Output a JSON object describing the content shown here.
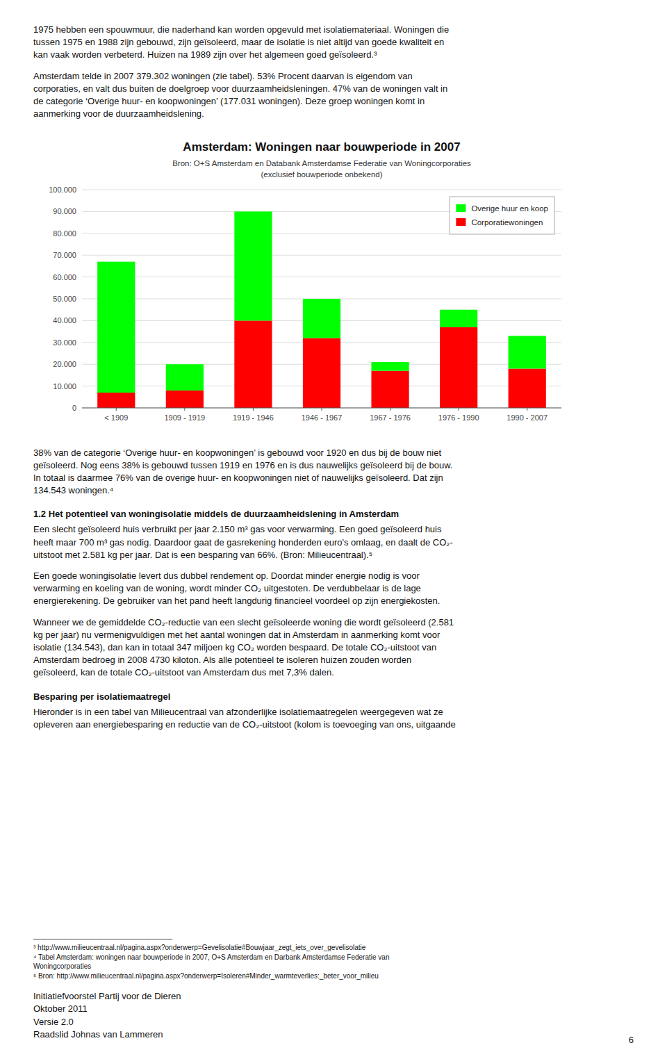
{
  "chart_data": {
    "type": "bar",
    "stacked": true,
    "title": "Amsterdam: Woningen naar bouwperiode in 2007",
    "subtitle": [
      "Bron: O+S Amsterdam en Databank Amsterdamse Federatie van Woningcorporaties",
      "(exclusief bouwperiode onbekend)"
    ],
    "categories": [
      "< 1909",
      "1909 - 1919",
      "1919 - 1946",
      "1946 - 1967",
      "1967 - 1976",
      "1976 - 1990",
      "1990 - 2007"
    ],
    "series": [
      {
        "name": "Corporatiewoningen",
        "color": "#FF0000",
        "values": [
          7000,
          8000,
          40000,
          32000,
          17000,
          37000,
          18000
        ]
      },
      {
        "name": "Overige huur en koop",
        "color": "#00FF00",
        "values": [
          60000,
          12000,
          50000,
          18000,
          4000,
          8000,
          15000
        ]
      }
    ],
    "ylim": [
      0,
      100000
    ],
    "yticks": [
      0,
      {
        "value": 10000,
        "label": "10.000"
      },
      {
        "value": 20000,
        "label": "20.000"
      },
      {
        "value": 30000,
        "label": "30.000"
      },
      {
        "value": 40000,
        "label": "40.000"
      },
      {
        "value": 50000,
        "label": "50.000"
      },
      {
        "value": 60000,
        "label": "60.000"
      },
      {
        "value": 70000,
        "label": "70.000"
      },
      {
        "value": 80000,
        "label": "80.000"
      },
      {
        "value": 90000,
        "label": "90.000"
      },
      {
        "value": 100000,
        "label": "100.000"
      }
    ],
    "grid": true,
    "legend": "upper right"
  },
  "page": {
    "before_chart": [
      "1975 hebben een spouwmuur, die naderhand kan worden opgevuld met isolatiemateriaal. Woningen die\ntussen 1975 en 1988 zijn gebouwd, zijn geïsoleerd, maar de isolatie is niet altijd van goede kwaliteit en\nkan vaak worden verbeterd. Huizen na 1989 zijn over het algemeen goed geïsoleerd.³",
      "Amsterdam telde in 2007 379.302 woningen (zie tabel). 53% Procent daarvan is eigendom van\ncorporaties, en valt dus buiten de doelgroep voor duurzaamheidsleningen. 47% van de woningen valt in\nde categorie ‘Overige huur- en koopwoningen’ (177.031 woningen). Deze groep woningen komt in\naanmerking voor de duurzaamheidslening."
    ],
    "after_chart": [
      {
        "paragraph": "38% van de categorie ‘Overige huur- en koopwoningen’ is gebouwd voor 1920 en dus bij de bouw niet\ngeïsoleerd. Nog eens 38% is gebouwd tussen 1919 en 1976 en is dus nauwelijks geïsoleerd bij de bouw.\nIn totaal is daarmee 76% van de overige huur- en koopwoningen niet of nauwelijks geïsoleerd. Dat zijn\n134.543 woningen.⁴"
      },
      {
        "heading": "1.2 Het potentieel van woningisolatie middels de duurzaamheidslening in Amsterdam"
      },
      {
        "paragraph": "Een slecht geïsoleerd huis verbruikt per jaar 2.150 m³ gas voor verwarming. Een goed geïsoleerd huis\nheeft maar 700 m³ gas nodig. Daardoor gaat de gasrekening honderden euro's omlaag, en daalt de CO₂-\nuitstoot met 2.581 kg per jaar. Dat is een besparing van 66%. (Bron: Milieucentraal).⁵"
      },
      {
        "paragraph": "Een goede woningisolatie levert dus dubbel rendement op. Doordat minder energie nodig is voor\nverwarming en koeling van de woning, wordt minder CO₂ uitgestoten. De verdubbelaar is de lage\nenergierekening. De gebruiker van het pand heeft langdurig financieel voordeel op zijn energiekosten."
      },
      {
        "paragraph": "Wanneer we de gemiddelde CO₂-reductie van een slecht geïsoleerde woning die wordt geïsoleerd (2.581\nkg per jaar) nu vermenigvuldigen met het aantal woningen dat in Amsterdam in aanmerking komt voor\nisolatie (134.543), dan kan in totaal 347 miljoen kg CO₂ worden bespaard. De totale CO₂-uitstoot van\nAmsterdam bedroeg in 2008 4730 kiloton. Als alle potentieel te isoleren huizen zouden worden\ngeïsoleerd, kan de totale CO₂-uitstoot van Amsterdam dus met 7,3% dalen."
      },
      {
        "heading": "Besparing per isolatiemaatregel"
      },
      {
        "paragraph": "Hieronder is in een tabel van Milieucentraal van afzonderlijke isolatiemaatregelen weergegeven wat ze\nopleveren aan energiebesparing en reductie van de CO₂-uitstoot (kolom is toevoeging van ons, uitgaande"
      }
    ],
    "footnote_rule": "――――――――――――――――――――",
    "footnotes": [
      "³ http://www.milieucentraal.nl/pagina.aspx?onderwerp=Gevelisolatie#Bouwjaar_zegt_iets_over_gevelisolatie",
      "⁴ Tabel Amsterdam: woningen naar bouwperiode in 2007, O+S Amsterdam en Darbank Amsterdamse Federatie van\nWoningcorporaties",
      "⁵ Bron: http://www.milieucentraal.nl/pagina.aspx?onderwerp=Isoleren#Minder_warmteverlies:_beter_voor_milieu"
    ],
    "footer": "Initiatiefvoorstel Partij voor de Dieren\nOktober 2011\nVersie 2.0\nRaadslid Johnas van Lammeren",
    "page_number": "6"
  }
}
